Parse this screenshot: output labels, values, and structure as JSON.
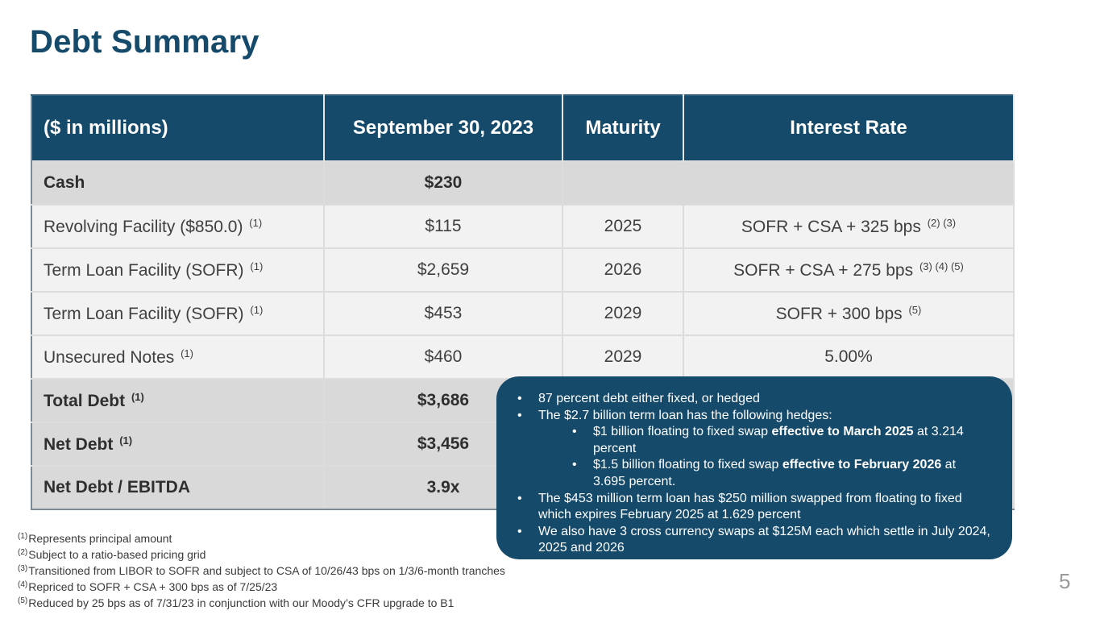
{
  "title": "Debt Summary",
  "table": {
    "headers": [
      "($ in millions)",
      "September 30, 2023",
      "Maturity",
      "Interest Rate"
    ],
    "rows": [
      {
        "label": "Cash",
        "label_sup": "",
        "amount": "$230",
        "maturity": "",
        "rate": "",
        "rate_sup": ""
      },
      {
        "label": "Revolving Facility ($850.0)",
        "label_sup": "(1)",
        "amount": "$115",
        "maturity": "2025",
        "rate": "SOFR + CSA + 325 bps",
        "rate_sup": "(2) (3)"
      },
      {
        "label": "Term Loan Facility (SOFR)",
        "label_sup": "(1)",
        "amount": "$2,659",
        "maturity": "2026",
        "rate": "SOFR + CSA + 275 bps",
        "rate_sup": "(3) (4) (5)"
      },
      {
        "label": "Term Loan Facility (SOFR)",
        "label_sup": "(1)",
        "amount": "$453",
        "maturity": "2029",
        "rate": "SOFR + 300 bps",
        "rate_sup": "(5)"
      },
      {
        "label": "Unsecured Notes",
        "label_sup": "(1)",
        "amount": "$460",
        "maturity": "2029",
        "rate": "5.00%",
        "rate_sup": ""
      },
      {
        "label": "Total Debt",
        "label_sup": "(1)",
        "amount": "$3,686",
        "maturity": "",
        "rate": "",
        "rate_sup": ""
      },
      {
        "label": "Net Debt",
        "label_sup": "(1)",
        "amount": "$3,456",
        "maturity": "",
        "rate": "",
        "rate_sup": ""
      },
      {
        "label": "Net Debt / EBITDA",
        "label_sup": "",
        "amount": "3.9x",
        "maturity": "",
        "rate": "",
        "rate_sup": ""
      }
    ]
  },
  "callout": {
    "b1": "87 percent debt either fixed, or hedged",
    "b2": "The $2.7 billion term loan has the following hedges:",
    "s1_pre": "$1 billion floating to fixed swap ",
    "s1_bold": "effective to March 2025",
    "s1_post": " at 3.214 percent",
    "s2_pre": "$1.5 billion floating to fixed swap ",
    "s2_bold": "effective to February 2026",
    "s2_post": " at 3.695 percent.",
    "b3": "The $453 million term loan has $250 million swapped from floating to fixed which expires February 2025 at 1.629 percent",
    "b4": "We also have 3 cross currency swaps at $125M each which settle in July 2024, 2025 and 2026"
  },
  "footnotes": [
    {
      "mark": "(1)",
      "text": "Represents principal amount"
    },
    {
      "mark": "(2)",
      "text": "Subject to a ratio-based pricing grid"
    },
    {
      "mark": "(3)",
      "text": "Transitioned from LIBOR to SOFR and subject to CSA of 10/26/43 bps on 1/3/6-month tranches"
    },
    {
      "mark": "(4)",
      "text": "Repriced to SOFR + CSA + 300 bps as of 7/25/23"
    },
    {
      "mark": "(5)",
      "text": "Reduced by 25 bps as of 7/31/23 in conjunction with our Moody’s CFR upgrade to B1"
    }
  ],
  "page_number": "5"
}
